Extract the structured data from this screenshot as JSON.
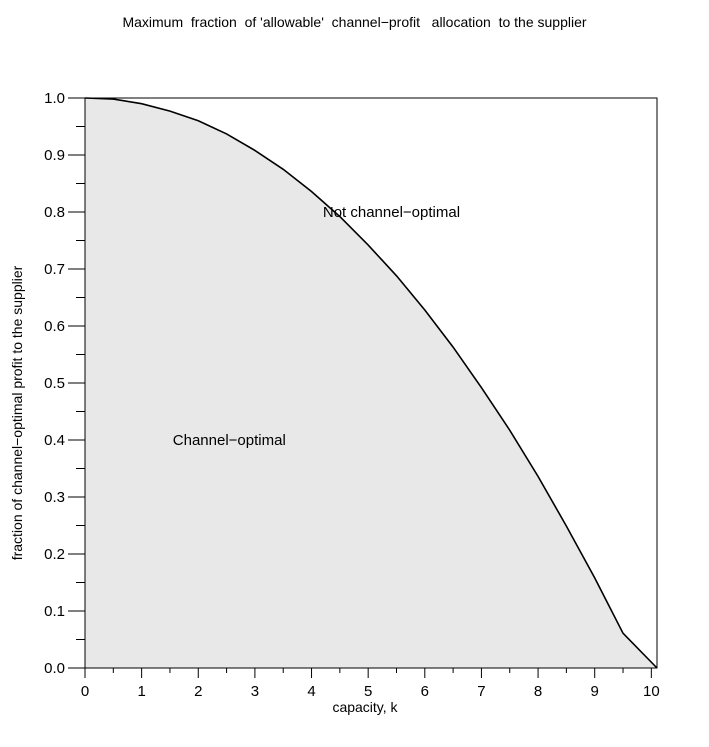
{
  "chart_data": {
    "type": "area",
    "title": "Maximum  fraction  of 'allowable'  channel−profit   allocation  to the supplier",
    "xlabel": "capacity, k",
    "ylabel": "fraction of channel−optimal profit to the supplier",
    "xlim": [
      0,
      10.1
    ],
    "ylim": [
      0,
      1.0
    ],
    "x_ticks": [
      0,
      1,
      2,
      3,
      4,
      5,
      6,
      7,
      8,
      9,
      10
    ],
    "y_ticks": [
      0.0,
      0.1,
      0.2,
      0.3,
      0.4,
      0.5,
      0.6,
      0.7,
      0.8,
      0.9,
      1.0
    ],
    "x_tick_labels": [
      "0",
      "1",
      "2",
      "3",
      "4",
      "5",
      "6",
      "7",
      "8",
      "9",
      "10"
    ],
    "y_tick_labels": [
      "0.0",
      "0.1",
      "0.2",
      "0.3",
      "0.4",
      "0.5",
      "0.6",
      "0.7",
      "0.8",
      "0.9",
      "1.0"
    ],
    "series": [
      {
        "x": [
          0,
          0.5,
          1,
          1.5,
          2,
          2.5,
          3,
          3.5,
          4,
          4.5,
          5,
          5.5,
          6,
          6.5,
          7,
          7.5,
          8,
          8.5,
          9,
          9.5,
          10.1
        ],
        "y": [
          1.0,
          0.998,
          0.99,
          0.977,
          0.96,
          0.937,
          0.908,
          0.875,
          0.836,
          0.792,
          0.742,
          0.688,
          0.628,
          0.563,
          0.492,
          0.417,
          0.336,
          0.249,
          0.158,
          0.061,
          0.0
        ],
        "line_color": "#000000",
        "fill_color": "#e8e8e8"
      }
    ],
    "annotations": [
      {
        "text": "Not channel−optimal",
        "x": 4.2,
        "y": 0.8
      },
      {
        "text": "Channel−optimal",
        "x": 1.55,
        "y": 0.4
      }
    ],
    "grid": false
  }
}
